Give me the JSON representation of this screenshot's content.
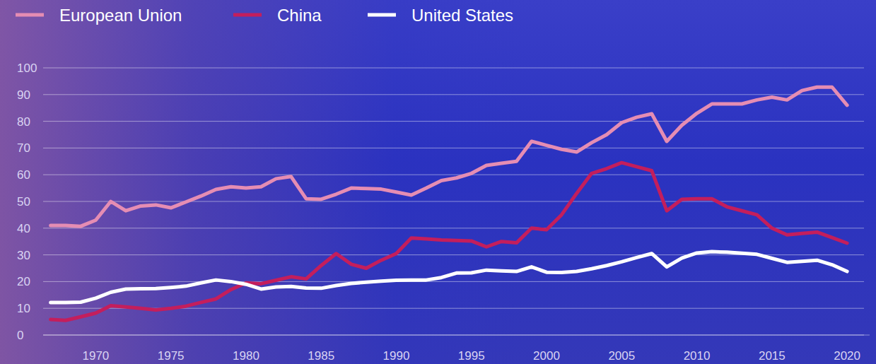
{
  "chart_data": {
    "type": "line",
    "x": [
      1967,
      1968,
      1969,
      1970,
      1971,
      1972,
      1973,
      1974,
      1975,
      1976,
      1977,
      1978,
      1979,
      1980,
      1981,
      1982,
      1983,
      1984,
      1985,
      1986,
      1987,
      1988,
      1989,
      1990,
      1991,
      1992,
      1993,
      1994,
      1995,
      1996,
      1997,
      1998,
      1999,
      2000,
      2001,
      2002,
      2003,
      2004,
      2005,
      2006,
      2007,
      2008,
      2009,
      2010,
      2011,
      2012,
      2013,
      2014,
      2015,
      2016,
      2017,
      2018,
      2019,
      2020
    ],
    "series": [
      {
        "name": "European Union",
        "color": "#e58db3",
        "values": [
          41,
          41,
          40.7,
          43,
          50,
          46.5,
          48.3,
          48.7,
          47.6,
          49.8,
          52,
          54.5,
          55.5,
          55,
          55.5,
          58.5,
          59.3,
          51,
          50.8,
          52.7,
          55,
          54.8,
          54.6,
          53.5,
          52.4,
          55,
          57.8,
          58.8,
          60.5,
          63.5,
          64.3,
          65,
          72.5,
          71,
          69.5,
          68.5,
          72,
          75,
          79.5,
          81.5,
          82.8,
          72.5,
          78.5,
          83,
          86.5,
          86.5,
          86.5,
          88,
          89,
          88,
          91.5,
          92.8,
          92.8,
          86
        ]
      },
      {
        "name": "China",
        "color": "#c41e5c",
        "values": [
          5.8,
          5.5,
          6.8,
          8.2,
          11,
          10.5,
          10,
          9.4,
          10,
          10.8,
          12.2,
          13.5,
          17,
          19.5,
          19.2,
          20.5,
          21.8,
          21,
          26,
          30.5,
          26.5,
          25,
          28,
          30.5,
          36.3,
          36,
          35.6,
          35.4,
          35.2,
          33,
          35,
          34.5,
          40,
          39.4,
          45,
          53,
          60.5,
          62.3,
          64.5,
          63,
          61.5,
          46.5,
          50.8,
          51,
          51,
          48,
          46.5,
          45,
          40,
          37.5,
          38,
          38.5,
          36.5,
          34.4
        ]
      },
      {
        "name": "United States",
        "color": "#ffffff",
        "values": [
          12.2,
          12.2,
          12.3,
          13.8,
          16,
          17.2,
          17.3,
          17.4,
          17.8,
          18.3,
          19.5,
          20.6,
          20,
          19,
          17.2,
          18,
          18.2,
          17.6,
          17.5,
          18.5,
          19.3,
          19.8,
          20.2,
          20.5,
          20.6,
          20.6,
          21.5,
          23.2,
          23.3,
          24.3,
          24,
          23.8,
          25.5,
          23.5,
          23.4,
          23.8,
          24.8,
          26,
          27.4,
          29,
          30.5,
          25.5,
          28.8,
          30.7,
          31.2,
          31,
          30.6,
          30.2,
          28.7,
          27.2,
          27.6,
          28,
          26.3,
          23.8
        ]
      }
    ],
    "xlim": [
      1966.5,
      2021.5
    ],
    "xticks": [
      1970,
      1975,
      1980,
      1985,
      1990,
      1995,
      2000,
      2005,
      2010,
      2015,
      2020
    ],
    "ylim": [
      0,
      100
    ],
    "yticks": [
      0,
      10,
      20,
      30,
      40,
      50,
      60,
      70,
      80,
      90,
      100
    ],
    "grid": true,
    "legend": "top"
  }
}
